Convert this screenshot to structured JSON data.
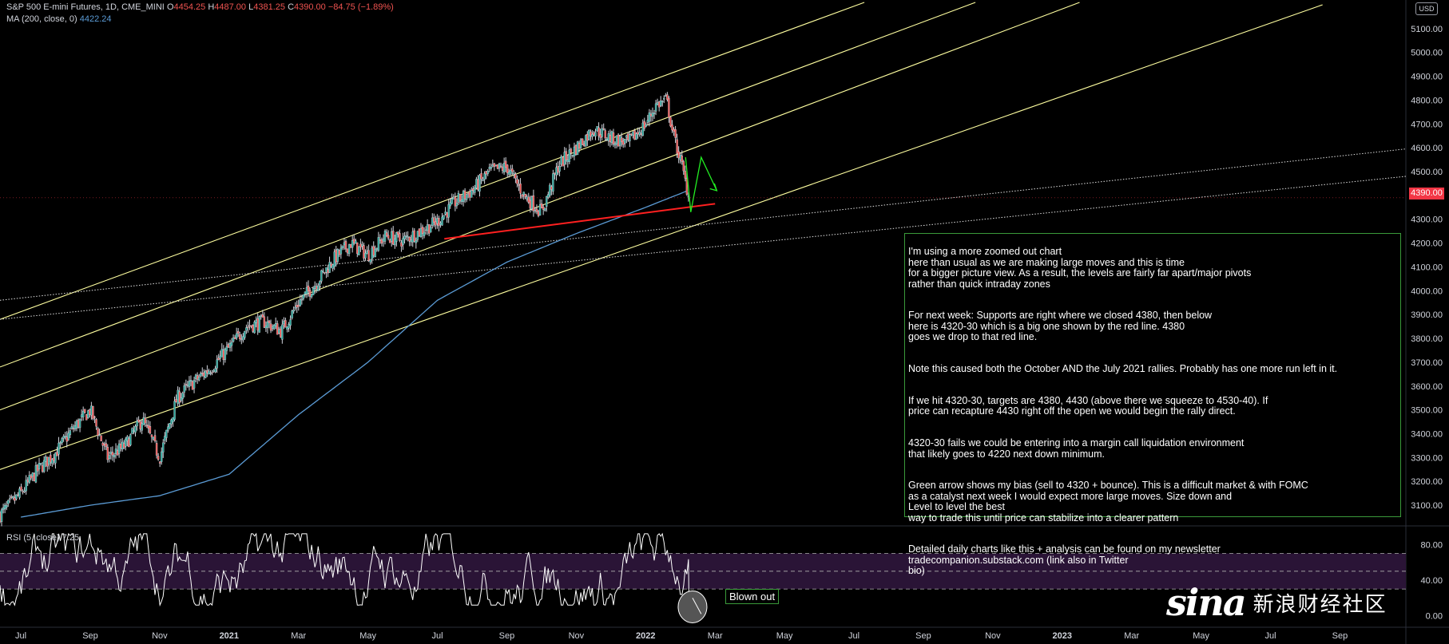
{
  "header": {
    "symbol": "S&P 500 E-mini Futures, 1D, CME_MINI",
    "open_label": "O",
    "open": "4454.25",
    "high_label": "H",
    "high": "4487.00",
    "low_label": "L",
    "low": "4381.25",
    "close_label": "C",
    "close": "4390.00",
    "change": "−84.75 (−1.89%)",
    "ma_label": "MA (200, close, 0)",
    "ma_value": "4422.24",
    "rsi_label": "RSI (5, close)",
    "rsi_value": "7.25",
    "currency": "USD",
    "last_price": "4390.00"
  },
  "annotation": {
    "paragraphs": [
      "I'm using a more zoomed out chart\nhere than usual as we are making large moves and this is time\nfor a bigger picture view. As a result, the levels are fairly far apart/major pivots\nrather than quick intraday zones",
      "For next week: Supports are right where we closed 4380, then below\nhere is 4320-30 which is a big one shown by the red line. 4380\ngoes we drop to that red line.",
      "Note this caused both the October AND the July 2021 rallies. Probably has one more run left in it.",
      "If we hit 4320-30, targets are 4380, 4430 (above there we squeeze to 4530-40). If\nprice can recapture 4430 right off the open we would begin the rally direct.",
      "4320-30 fails we could be entering into a margin call liquidation environment\nthat likely goes to 4220 next down minimum.",
      "Green arrow shows my bias (sell to 4320 + bounce). This is a difficult market & with FOMC\nas a catalyst next week I would expect more large moves. Size down and\nLevel to level the best\nway to trade this until price can stabilize into a clearer pattern",
      "Detailed daily charts like this + analysis can be found on my newsletter\ntradecompanion.substack.com (link also in Twitter\nbio)"
    ],
    "callout": "Blown out"
  },
  "watermark": {
    "logo": "sina",
    "text": "新浪财经社区"
  },
  "colors": {
    "up": "#26a69a",
    "down": "#ef5350",
    "candle": "#d1d4dc",
    "ma": "#5b9bd5",
    "channel": "#ffffa0",
    "support": "#ff2020",
    "arrow": "#22ee22",
    "rsi_band": "#2a1436"
  },
  "chart_data": [
    {
      "type": "candlestick",
      "title": "S&P 500 E-mini Futures, 1D, CME_MINI",
      "x_ticks": [
        "Jul",
        "Sep",
        "Nov",
        "2021",
        "Mar",
        "May",
        "Jul",
        "Sep",
        "Nov",
        "2022",
        "Mar",
        "May",
        "Jul",
        "Sep",
        "Nov",
        "2023",
        "Mar",
        "May",
        "Jul",
        "Sep"
      ],
      "x_tick_months": [
        0,
        2,
        4,
        6,
        8,
        10,
        12,
        14,
        16,
        18,
        20,
        22,
        24,
        26,
        28,
        30,
        32,
        34,
        36,
        38
      ],
      "y_ticks": [
        3100,
        3200,
        3300,
        3400,
        3500,
        3600,
        3700,
        3800,
        3900,
        4000,
        4100,
        4200,
        4300,
        4400,
        4500,
        4600,
        4700,
        4800,
        4900,
        5000,
        5100
      ],
      "y_tick_labels": [
        "3100.00",
        "3200.00",
        "3300.00",
        "3400.00",
        "3500.00",
        "3600.00",
        "3700.00",
        "3800.00",
        "3900.00",
        "4000.00",
        "4100.00",
        "4200.00",
        "4300.00",
        "4400.00",
        "4500.00",
        "4600.00",
        "4700.00",
        "4800.00",
        "4900.00",
        "5000.00",
        "5100.00"
      ],
      "ylim": [
        3020,
        5220
      ],
      "xlim_months": [
        -0.6,
        39.9
      ],
      "close_path": {
        "month": [
          -0.6,
          0.0,
          0.5,
          1.0,
          1.5,
          2.0,
          2.5,
          3.0,
          3.5,
          4.0,
          4.5,
          5.0,
          5.5,
          6.0,
          6.5,
          7.0,
          7.5,
          8.0,
          8.5,
          9.0,
          9.5,
          10.0,
          10.5,
          11.0,
          11.5,
          12.0,
          12.5,
          13.0,
          13.5,
          14.0,
          14.5,
          15.0,
          15.5,
          16.0,
          16.5,
          17.0,
          17.5,
          18.0,
          18.3,
          18.6,
          18.8,
          19.0,
          19.25
        ],
        "close": [
          3060,
          3150,
          3250,
          3320,
          3420,
          3500,
          3300,
          3350,
          3460,
          3300,
          3550,
          3620,
          3680,
          3760,
          3850,
          3870,
          3830,
          3950,
          4030,
          4130,
          4200,
          4150,
          4230,
          4210,
          4250,
          4290,
          4370,
          4420,
          4500,
          4520,
          4400,
          4330,
          4530,
          4600,
          4680,
          4640,
          4620,
          4700,
          4780,
          4800,
          4650,
          4550,
          4390
        ]
      },
      "annotations": [
        "red support line ~4320-4330",
        "yellow ascending channel lines",
        "dotted trend lines",
        "green arrow bias"
      ],
      "grid": false,
      "last_price": 4390.0
    },
    {
      "type": "line",
      "title": "MA (200, close, 0)",
      "month": [
        0,
        2,
        4,
        6,
        8,
        10,
        12,
        14,
        16,
        18,
        19.25
      ],
      "values": [
        3050,
        3100,
        3140,
        3230,
        3480,
        3700,
        3960,
        4120,
        4240,
        4350,
        4422.24
      ],
      "last_value": 4422.24
    },
    {
      "type": "line",
      "title": "RSI (5, close)",
      "y_ticks": [
        0,
        40,
        80
      ],
      "y_tick_labels": [
        "0.00",
        "40.00",
        "80.00"
      ],
      "ylim": [
        -12,
        100
      ],
      "bands": [
        30,
        50,
        70
      ],
      "last_value": 7.25
    }
  ]
}
